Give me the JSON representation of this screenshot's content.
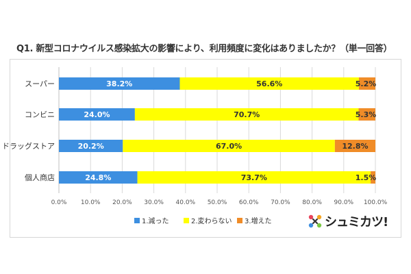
{
  "title": "Q1. 新型コロナウイルス感染拡大の影響により、利用頻度に変化はありましたか？（単一回答）",
  "brand": {
    "name": "シュミカツ!"
  },
  "chart_data": {
    "type": "bar",
    "orientation": "horizontal",
    "stacked": true,
    "categories": [
      "スーパー",
      "コンビニ",
      "ドラッグストア",
      "個人商店"
    ],
    "series": [
      {
        "name": "1.減った",
        "color": "#3d8fe0",
        "values": [
          38.2,
          24.0,
          20.2,
          24.8
        ]
      },
      {
        "name": "2.変わらない",
        "color": "#ffff00",
        "values": [
          56.6,
          70.7,
          67.0,
          73.7
        ]
      },
      {
        "name": "3.増えた",
        "color": "#f08c28",
        "values": [
          5.2,
          5.3,
          12.8,
          1.5
        ]
      }
    ],
    "value_labels": [
      [
        "38.2%",
        "56.6%",
        "5.2%"
      ],
      [
        "24.0%",
        "70.7%",
        "5.3%"
      ],
      [
        "20.2%",
        "67.0%",
        "12.8%"
      ],
      [
        "24.8%",
        "73.7%",
        "1.5%"
      ]
    ],
    "xticks": [
      "0.0%",
      "10.0%",
      "20.0%",
      "30.0%",
      "40.0%",
      "50.0%",
      "60.0%",
      "70.0%",
      "80.0%",
      "90.0%",
      "100.0%"
    ],
    "xlim": [
      0,
      100
    ],
    "grid": true,
    "legend_position": "bottom"
  }
}
